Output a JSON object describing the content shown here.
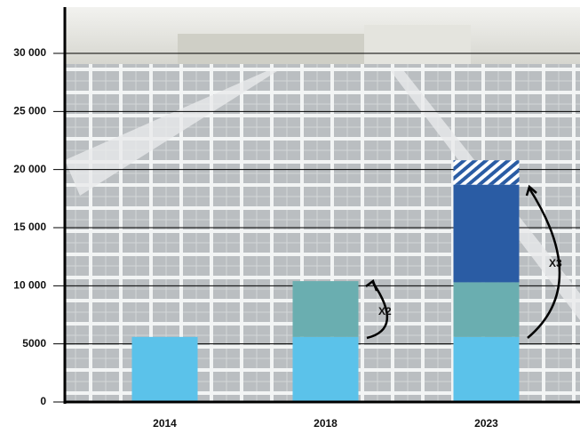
{
  "chart_data": {
    "type": "bar",
    "stacked": true,
    "categories": [
      "2014",
      "2018",
      "2023"
    ],
    "series": [
      {
        "color": "#5bc2ea",
        "values": [
          5600,
          5600,
          5600
        ]
      },
      {
        "color": "#6aaeb0",
        "values": [
          null,
          4800,
          4700
        ]
      },
      {
        "color": "#2a5ca4",
        "values": [
          null,
          null,
          8400
        ]
      },
      {
        "color": "#2a5ca4",
        "pattern": "hatch",
        "values": [
          null,
          null,
          2100
        ]
      }
    ],
    "ylim": [
      0,
      30000
    ],
    "yticks": [
      0,
      5000,
      {
        "value": 10000,
        "label": "10 000"
      },
      {
        "value": 15000,
        "label": "15 000"
      },
      {
        "value": 20000,
        "label": "20 000"
      },
      {
        "value": 25000,
        "label": "25 000"
      },
      {
        "value": 30000,
        "label": "30 000"
      }
    ],
    "grid": true,
    "annotations": [
      "X2",
      "X3"
    ]
  }
}
